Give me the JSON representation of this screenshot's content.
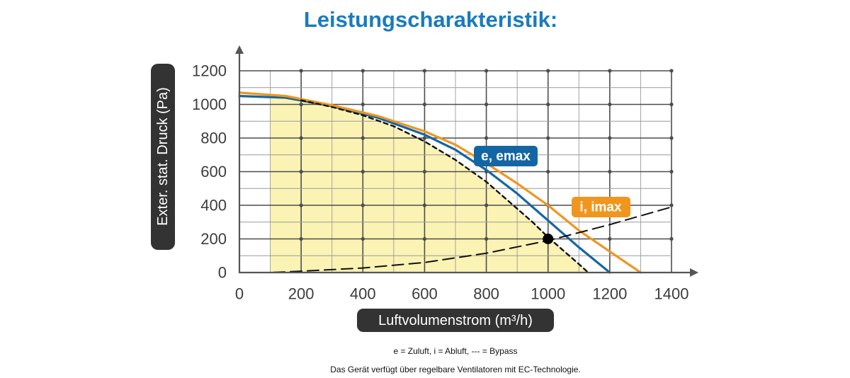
{
  "chart_data": {
    "type": "line",
    "title": "Leistungscharakteristik:",
    "xlabel": "Luftvolumenstrom (m³/h)",
    "ylabel": "Exter. stat. Druck (Pa)",
    "xlim": [
      0,
      1400
    ],
    "ylim": [
      0,
      1200
    ],
    "x_ticks": [
      0,
      200,
      400,
      600,
      800,
      1000,
      1200,
      1400
    ],
    "y_ticks": [
      0,
      200,
      400,
      600,
      800,
      1000,
      1200
    ],
    "grid": true,
    "operating_range": {
      "x": [
        100,
        150,
        200,
        300,
        400,
        500,
        600,
        700,
        800,
        900,
        950,
        1000,
        1050,
        1100,
        1130,
        100
      ],
      "y": [
        1045,
        1040,
        1025,
        985,
        935,
        870,
        780,
        670,
        540,
        380,
        300,
        210,
        130,
        50,
        0,
        0
      ]
    },
    "series": [
      {
        "name": "e, emax",
        "color": "#1466a3",
        "x": [
          0,
          150,
          300,
          450,
          600,
          700,
          800,
          900,
          1000,
          1100,
          1200
        ],
        "y": [
          1050,
          1040,
          990,
          920,
          820,
          730,
          610,
          470,
          310,
          150,
          0
        ]
      },
      {
        "name": "i, imax",
        "color": "#f0961e",
        "x": [
          0,
          150,
          300,
          450,
          600,
          700,
          800,
          900,
          1000,
          1100,
          1200,
          1300
        ],
        "y": [
          1070,
          1050,
          995,
          930,
          840,
          760,
          650,
          530,
          400,
          250,
          125,
          0
        ]
      },
      {
        "name": "",
        "style": "short-dashed",
        "color": "#111111",
        "x": [
          200,
          300,
          400,
          500,
          600,
          700,
          800,
          900,
          950,
          1000,
          1050,
          1100,
          1130
        ],
        "y": [
          1025,
          985,
          935,
          870,
          780,
          670,
          540,
          380,
          300,
          210,
          130,
          50,
          0
        ]
      },
      {
        "name": "",
        "style": "long-dashed",
        "color": "#111111",
        "x": [
          0,
          100,
          200,
          400,
          600,
          800,
          1000,
          1200,
          1400
        ],
        "y": [
          0,
          0,
          8,
          27,
          60,
          115,
          190,
          285,
          390
        ]
      }
    ],
    "operating_point": {
      "x": 1000,
      "y": 200
    }
  },
  "legend": {
    "note": "e = Zuluft, i = Abluft, --- = Bypass",
    "footnote": "Das Gerät verfügt über regelbare Ventilatoren mit EC-Technologie."
  },
  "colors": {
    "title": "#1a7bbd",
    "pill": "#333333",
    "fill": "#fbf3b4",
    "grid": "#5a5a5a"
  }
}
